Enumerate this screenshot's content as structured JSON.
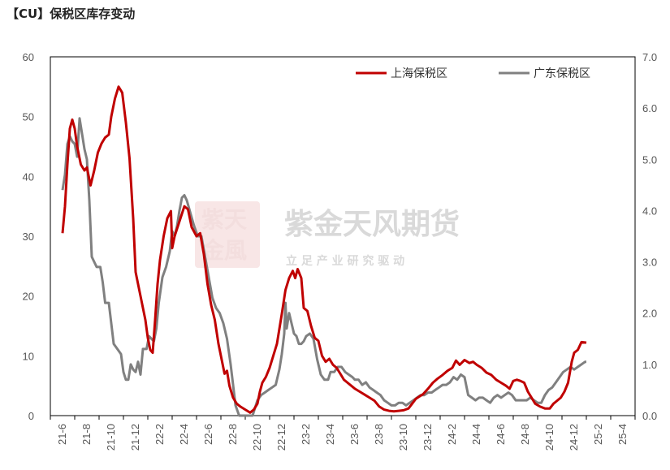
{
  "chart_data": {
    "type": "line",
    "title": "【CU】保税区库存变动",
    "categories": [
      "21-6",
      "21-8",
      "21-10",
      "21-12",
      "22-2",
      "22-4",
      "22-6",
      "22-8",
      "22-10",
      "22-12",
      "23-2",
      "23-4",
      "23-6",
      "23-8",
      "23-10",
      "23-12",
      "24-2",
      "24-4",
      "24-6",
      "24-8",
      "24-10",
      "24-12",
      "25-2",
      "25-4"
    ],
    "y_left": {
      "min": 0,
      "max": 60,
      "ticks": [
        "0",
        "10",
        "20",
        "30",
        "40",
        "50",
        "60"
      ]
    },
    "y_right": {
      "min": 0,
      "max": 7,
      "ticks": [
        "0.0",
        "1.0",
        "2.0",
        "3.0",
        "4.0",
        "5.0",
        "6.0",
        "7.0"
      ]
    },
    "grid": false,
    "legend_position": "top-right",
    "series": [
      {
        "name": "上海保税区",
        "axis": "left",
        "color": "#c00000",
        "points": [
          [
            0,
            30.5
          ],
          [
            0.1,
            35
          ],
          [
            0.2,
            42
          ],
          [
            0.3,
            48
          ],
          [
            0.4,
            49.5
          ],
          [
            0.5,
            48
          ],
          [
            0.6,
            45
          ],
          [
            0.75,
            42
          ],
          [
            0.9,
            41
          ],
          [
            1.0,
            41.5
          ],
          [
            1.15,
            38.5
          ],
          [
            1.3,
            41
          ],
          [
            1.45,
            44
          ],
          [
            1.6,
            45.5
          ],
          [
            1.75,
            46.5
          ],
          [
            1.9,
            47
          ],
          [
            2.0,
            50
          ],
          [
            2.15,
            53
          ],
          [
            2.3,
            55
          ],
          [
            2.45,
            54
          ],
          [
            2.6,
            49
          ],
          [
            2.75,
            43
          ],
          [
            2.9,
            33
          ],
          [
            3.0,
            24
          ],
          [
            3.1,
            22
          ],
          [
            3.25,
            19
          ],
          [
            3.4,
            16
          ],
          [
            3.5,
            13
          ],
          [
            3.6,
            11
          ],
          [
            3.7,
            10.5
          ],
          [
            3.8,
            16
          ],
          [
            3.9,
            22
          ],
          [
            4.0,
            26
          ],
          [
            4.15,
            30
          ],
          [
            4.3,
            33
          ],
          [
            4.45,
            34.2
          ],
          [
            4.5,
            28
          ],
          [
            4.6,
            30
          ],
          [
            4.8,
            32.5
          ],
          [
            5.0,
            35
          ],
          [
            5.15,
            34.5
          ],
          [
            5.3,
            31.5
          ],
          [
            5.5,
            30
          ],
          [
            5.65,
            30.5
          ],
          [
            5.8,
            27
          ],
          [
            5.95,
            22
          ],
          [
            6.1,
            18.5
          ],
          [
            6.25,
            16
          ],
          [
            6.4,
            12
          ],
          [
            6.55,
            9
          ],
          [
            6.65,
            7
          ],
          [
            6.75,
            7.5
          ],
          [
            6.85,
            5
          ],
          [
            7.0,
            3
          ],
          [
            7.15,
            2
          ],
          [
            7.3,
            1.5
          ],
          [
            7.5,
            1
          ],
          [
            7.7,
            0.5
          ],
          [
            7.85,
            1
          ],
          [
            8.0,
            2
          ],
          [
            8.1,
            4
          ],
          [
            8.2,
            5.5
          ],
          [
            8.35,
            6.5
          ],
          [
            8.5,
            8
          ],
          [
            8.65,
            10
          ],
          [
            8.8,
            12
          ],
          [
            9.0,
            17
          ],
          [
            9.15,
            21
          ],
          [
            9.3,
            23
          ],
          [
            9.45,
            24.2
          ],
          [
            9.55,
            23
          ],
          [
            9.65,
            24.5
          ],
          [
            9.8,
            23
          ],
          [
            9.9,
            18
          ],
          [
            10.05,
            17.5
          ],
          [
            10.2,
            15
          ],
          [
            10.35,
            13
          ],
          [
            10.5,
            12.5
          ],
          [
            10.65,
            10
          ],
          [
            10.8,
            9
          ],
          [
            10.95,
            9.5
          ],
          [
            11.1,
            8.5
          ],
          [
            11.25,
            8
          ],
          [
            11.4,
            7
          ],
          [
            11.55,
            6
          ],
          [
            11.7,
            5.5
          ],
          [
            11.85,
            5
          ],
          [
            12.0,
            4.5
          ],
          [
            12.2,
            4
          ],
          [
            12.4,
            3.5
          ],
          [
            12.6,
            3
          ],
          [
            12.8,
            2.5
          ],
          [
            13.0,
            1.5
          ],
          [
            13.2,
            1
          ],
          [
            13.4,
            0.8
          ],
          [
            13.6,
            0.7
          ],
          [
            13.8,
            0.8
          ],
          [
            14.0,
            0.9
          ],
          [
            14.2,
            1.2
          ],
          [
            14.35,
            2
          ],
          [
            14.5,
            2.8
          ],
          [
            14.65,
            3.2
          ],
          [
            14.8,
            3.6
          ],
          [
            15.0,
            4.5
          ],
          [
            15.2,
            5.5
          ],
          [
            15.4,
            6.2
          ],
          [
            15.6,
            6.8
          ],
          [
            15.8,
            7.5
          ],
          [
            16.0,
            8
          ],
          [
            16.15,
            9.2
          ],
          [
            16.3,
            8.5
          ],
          [
            16.5,
            9.3
          ],
          [
            16.7,
            8.8
          ],
          [
            16.85,
            9
          ],
          [
            17.0,
            8.5
          ],
          [
            17.2,
            8
          ],
          [
            17.4,
            7.2
          ],
          [
            17.6,
            6.8
          ],
          [
            17.8,
            6
          ],
          [
            18.0,
            5.5
          ],
          [
            18.2,
            5
          ],
          [
            18.35,
            4.5
          ],
          [
            18.5,
            5.8
          ],
          [
            18.65,
            6
          ],
          [
            18.8,
            5.8
          ],
          [
            18.95,
            5.5
          ],
          [
            19.1,
            4
          ],
          [
            19.25,
            3
          ],
          [
            19.4,
            2
          ],
          [
            19.6,
            1.5
          ],
          [
            19.8,
            1.2
          ],
          [
            20.0,
            1.2
          ],
          [
            20.15,
            2
          ],
          [
            20.3,
            2.5
          ],
          [
            20.45,
            3
          ],
          [
            20.6,
            4
          ],
          [
            20.75,
            5.5
          ],
          [
            20.9,
            9
          ],
          [
            21.0,
            10.5
          ],
          [
            21.15,
            11
          ],
          [
            21.3,
            12.3
          ],
          [
            21.5,
            12.2
          ]
        ]
      },
      {
        "name": "广东保税区",
        "axis": "right",
        "color": "#808080",
        "points": [
          [
            0,
            4.4
          ],
          [
            0.1,
            4.7
          ],
          [
            0.2,
            5.3
          ],
          [
            0.3,
            5.45
          ],
          [
            0.4,
            5.35
          ],
          [
            0.5,
            5.3
          ],
          [
            0.6,
            5.05
          ],
          [
            0.7,
            5.8
          ],
          [
            0.8,
            5.5
          ],
          [
            0.9,
            5.2
          ],
          [
            1.0,
            5.0
          ],
          [
            1.1,
            4.2
          ],
          [
            1.2,
            3.1
          ],
          [
            1.3,
            3.0
          ],
          [
            1.4,
            2.9
          ],
          [
            1.55,
            2.9
          ],
          [
            1.65,
            2.6
          ],
          [
            1.75,
            2.2
          ],
          [
            1.9,
            2.2
          ],
          [
            2.0,
            1.8
          ],
          [
            2.1,
            1.4
          ],
          [
            2.25,
            1.3
          ],
          [
            2.4,
            1.2
          ],
          [
            2.5,
            0.85
          ],
          [
            2.6,
            0.7
          ],
          [
            2.7,
            0.7
          ],
          [
            2.8,
            1.0
          ],
          [
            2.9,
            0.9
          ],
          [
            3.0,
            0.85
          ],
          [
            3.1,
            1.05
          ],
          [
            3.2,
            0.8
          ],
          [
            3.3,
            1.3
          ],
          [
            3.45,
            1.3
          ],
          [
            3.55,
            1.55
          ],
          [
            3.65,
            1.5
          ],
          [
            3.75,
            1.45
          ],
          [
            3.85,
            1.7
          ],
          [
            3.95,
            2.2
          ],
          [
            4.1,
            2.7
          ],
          [
            4.25,
            2.9
          ],
          [
            4.4,
            3.2
          ],
          [
            4.5,
            3.6
          ],
          [
            4.6,
            3.5
          ],
          [
            4.7,
            3.7
          ],
          [
            4.8,
            4.0
          ],
          [
            4.9,
            4.25
          ],
          [
            5.0,
            4.3
          ],
          [
            5.1,
            4.2
          ],
          [
            5.25,
            3.95
          ],
          [
            5.4,
            3.7
          ],
          [
            5.55,
            3.5
          ],
          [
            5.7,
            3.5
          ],
          [
            5.85,
            3.1
          ],
          [
            6.0,
            2.7
          ],
          [
            6.15,
            2.3
          ],
          [
            6.3,
            2.1
          ],
          [
            6.45,
            2.0
          ],
          [
            6.6,
            1.8
          ],
          [
            6.75,
            1.5
          ],
          [
            6.9,
            1.0
          ],
          [
            7.0,
            0.6
          ],
          [
            7.1,
            0.2
          ],
          [
            7.25,
            0.0
          ],
          [
            7.5,
            0.0
          ],
          [
            7.8,
            0.0
          ],
          [
            8.0,
            0.3
          ],
          [
            8.15,
            0.4
          ],
          [
            8.3,
            0.45
          ],
          [
            8.45,
            0.5
          ],
          [
            8.6,
            0.55
          ],
          [
            8.75,
            0.6
          ],
          [
            8.9,
            0.9
          ],
          [
            9.0,
            1.2
          ],
          [
            9.1,
            1.6
          ],
          [
            9.15,
            2.2
          ],
          [
            9.2,
            1.7
          ],
          [
            9.3,
            2.0
          ],
          [
            9.4,
            1.8
          ],
          [
            9.5,
            1.6
          ],
          [
            9.6,
            1.55
          ],
          [
            9.7,
            1.4
          ],
          [
            9.8,
            1.4
          ],
          [
            9.9,
            1.45
          ],
          [
            10.0,
            1.55
          ],
          [
            10.15,
            1.6
          ],
          [
            10.3,
            1.5
          ],
          [
            10.45,
            1.1
          ],
          [
            10.6,
            0.8
          ],
          [
            10.75,
            0.7
          ],
          [
            10.9,
            0.7
          ],
          [
            11.0,
            0.85
          ],
          [
            11.15,
            0.85
          ],
          [
            11.3,
            0.95
          ],
          [
            11.45,
            0.95
          ],
          [
            11.6,
            0.85
          ],
          [
            11.75,
            0.8
          ],
          [
            11.9,
            0.75
          ],
          [
            12.0,
            0.7
          ],
          [
            12.15,
            0.7
          ],
          [
            12.3,
            0.6
          ],
          [
            12.45,
            0.65
          ],
          [
            12.6,
            0.55
          ],
          [
            12.75,
            0.5
          ],
          [
            12.9,
            0.45
          ],
          [
            13.05,
            0.4
          ],
          [
            13.2,
            0.3
          ],
          [
            13.35,
            0.25
          ],
          [
            13.5,
            0.2
          ],
          [
            13.65,
            0.2
          ],
          [
            13.8,
            0.25
          ],
          [
            13.95,
            0.25
          ],
          [
            14.1,
            0.2
          ],
          [
            14.25,
            0.25
          ],
          [
            14.4,
            0.3
          ],
          [
            14.55,
            0.35
          ],
          [
            14.7,
            0.4
          ],
          [
            14.85,
            0.4
          ],
          [
            15.0,
            0.45
          ],
          [
            15.15,
            0.45
          ],
          [
            15.3,
            0.5
          ],
          [
            15.45,
            0.55
          ],
          [
            15.6,
            0.6
          ],
          [
            15.75,
            0.6
          ],
          [
            15.9,
            0.65
          ],
          [
            16.05,
            0.75
          ],
          [
            16.2,
            0.7
          ],
          [
            16.35,
            0.8
          ],
          [
            16.5,
            0.75
          ],
          [
            16.65,
            0.4
          ],
          [
            16.8,
            0.35
          ],
          [
            16.95,
            0.3
          ],
          [
            17.1,
            0.35
          ],
          [
            17.25,
            0.35
          ],
          [
            17.4,
            0.3
          ],
          [
            17.55,
            0.25
          ],
          [
            17.7,
            0.35
          ],
          [
            17.85,
            0.4
          ],
          [
            18.0,
            0.35
          ],
          [
            18.15,
            0.4
          ],
          [
            18.3,
            0.45
          ],
          [
            18.45,
            0.4
          ],
          [
            18.6,
            0.3
          ],
          [
            18.75,
            0.3
          ],
          [
            18.9,
            0.3
          ],
          [
            19.05,
            0.3
          ],
          [
            19.2,
            0.35
          ],
          [
            19.35,
            0.3
          ],
          [
            19.5,
            0.25
          ],
          [
            19.65,
            0.25
          ],
          [
            19.8,
            0.4
          ],
          [
            19.95,
            0.5
          ],
          [
            20.1,
            0.55
          ],
          [
            20.25,
            0.65
          ],
          [
            20.4,
            0.75
          ],
          [
            20.55,
            0.85
          ],
          [
            20.7,
            0.9
          ],
          [
            20.85,
            0.95
          ],
          [
            21.0,
            0.9
          ],
          [
            21.15,
            0.95
          ],
          [
            21.3,
            1.0
          ],
          [
            21.45,
            1.05
          ],
          [
            21.5,
            1.05
          ]
        ]
      }
    ]
  },
  "watermark": {
    "brand": "紫金天风期货",
    "slogan": "立 足 产 业   研 究 驱 动",
    "seal": "紫天金風"
  }
}
